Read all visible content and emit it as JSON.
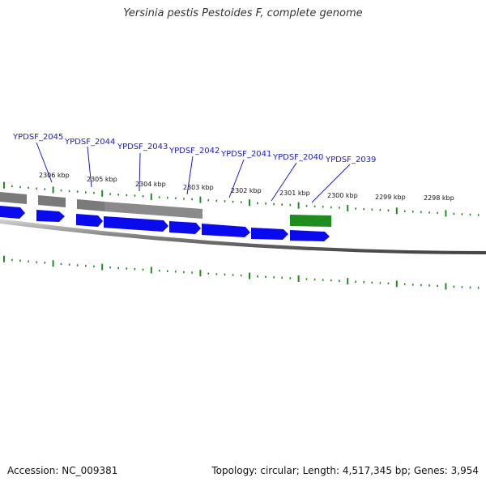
{
  "title": "Yersinia pestis Pestoides F, complete genome",
  "accession": "Accession: NC_009381",
  "summary": "Topology: circular; Length: 4,517,345 bp; Genes: 3,954",
  "colors": {
    "backbone": "#8c8c8c",
    "forward_cds": "#0a0aee",
    "gene_block": "#7a7a7a",
    "highlight_gene": "#1e8c1e",
    "tick": "#1e8c1e",
    "gene_label": "#1a1acc",
    "kbp_label": "#111111"
  },
  "gene_labels": [
    {
      "name": "YPDSF_2045"
    },
    {
      "name": "YPDSF_2044"
    },
    {
      "name": "YPDSF_2043"
    },
    {
      "name": "YPDSF_2042"
    },
    {
      "name": "YPDSF_2041"
    },
    {
      "name": "YPDSF_2040"
    },
    {
      "name": "YPDSF_2039"
    }
  ],
  "kbp_ticks": [
    {
      "label": "2306 kbp"
    },
    {
      "label": "2305 kbp"
    },
    {
      "label": "2304 kbp"
    },
    {
      "label": "2303 kbp"
    },
    {
      "label": "2302 kbp"
    },
    {
      "label": "2301 kbp"
    },
    {
      "label": "2300 kbp"
    },
    {
      "label": "2299 kbp"
    },
    {
      "label": "2298 kbp"
    }
  ]
}
